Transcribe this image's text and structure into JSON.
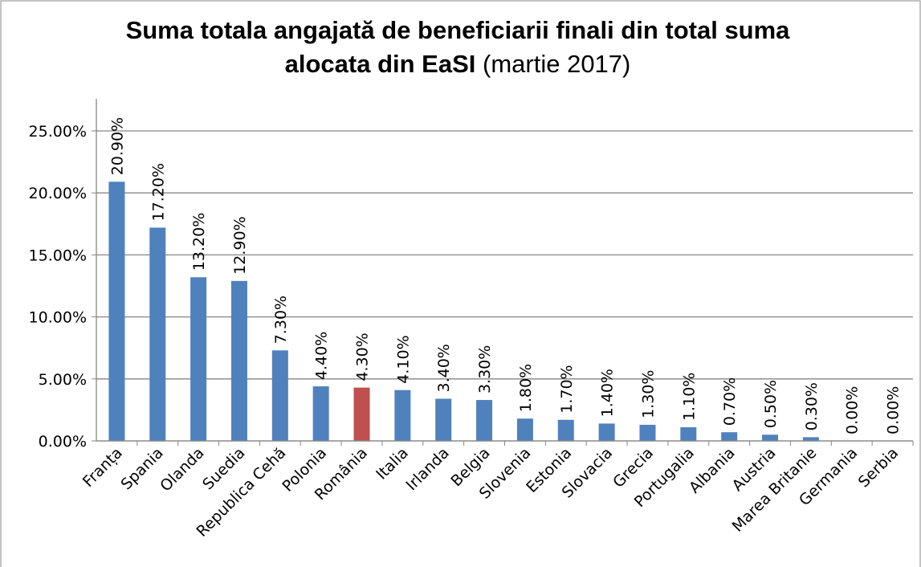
{
  "chart_data": {
    "type": "bar",
    "title": "Suma totala angajată de beneficiarii finali din total suma",
    "title_line2": "alocata din EaSI",
    "title_note": "(martie 2017)",
    "categories": [
      "Franța",
      "Spania",
      "Olanda",
      "Suedia",
      "Republica Cehă",
      "Polonia",
      "România",
      "Italia",
      "Irlanda",
      "Belgia",
      "Slovenia",
      "Estonia",
      "Slovacia",
      "Grecia",
      "Portugalia",
      "Albania",
      "Austria",
      "Marea Britanie",
      "Germania",
      "Serbia"
    ],
    "values": [
      20.9,
      17.2,
      13.2,
      12.9,
      7.3,
      4.4,
      4.3,
      4.1,
      3.4,
      3.3,
      1.8,
      1.7,
      1.4,
      1.3,
      1.1,
      0.7,
      0.5,
      0.3,
      0,
      0
    ],
    "value_labels": [
      "20.90%",
      "17.20%",
      "13.20%",
      "12.90%",
      "7.30%",
      "4.40%",
      "4.30%",
      "4.10%",
      "3.40%",
      "3.30%",
      "1.80%",
      "1.70%",
      "1.40%",
      "1.30%",
      "1.10%",
      "0.70%",
      "0.50%",
      "0.30%",
      "0.00%",
      "0.00%"
    ],
    "colors": [
      "#4f81bd",
      "#4f81bd",
      "#4f81bd",
      "#4f81bd",
      "#4f81bd",
      "#4f81bd",
      "#c0504d",
      "#4f81bd",
      "#4f81bd",
      "#4f81bd",
      "#4f81bd",
      "#4f81bd",
      "#4f81bd",
      "#4f81bd",
      "#4f81bd",
      "#4f81bd",
      "#4f81bd",
      "#4f81bd",
      "#4f81bd",
      "#4f81bd"
    ],
    "ylim": [
      0,
      25
    ],
    "yticks": [
      {
        "value": 0,
        "label": "0.00%"
      },
      {
        "value": 5,
        "label": "5.00%"
      },
      {
        "value": 10,
        "label": "10.00%"
      },
      {
        "value": 15,
        "label": "15.00%"
      },
      {
        "value": 20,
        "label": "20.00%"
      },
      {
        "value": 25,
        "label": "25.00%"
      }
    ],
    "grid": true
  }
}
